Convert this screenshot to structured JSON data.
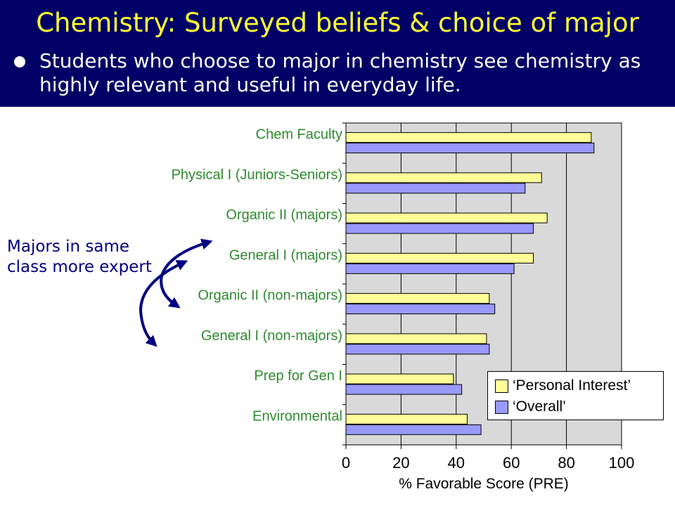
{
  "slide": {
    "title": "Chemistry: Surveyed beliefs & choice of major",
    "bullet": "Students who choose to major in chemistry see chemistry as highly relevant and useful in everyday life.",
    "annotation_line1": "Majors in same",
    "annotation_line2": "class more expert"
  },
  "colors": {
    "header_bg": "#000066",
    "title": "#ffff33",
    "category_label": "#2e8b2e",
    "personal_interest": "#ffff99",
    "overall": "#9999ff",
    "plot_bg": "#d9d9d9",
    "annotation": "#000080"
  },
  "chart_data": {
    "type": "bar",
    "orientation": "horizontal",
    "categories": [
      "Chem Faculty",
      "Physical I (Juniors-Seniors)",
      "Organic II (majors)",
      "General I (majors)",
      "Organic II (non-majors)",
      "General I (non-majors)",
      "Prep for Gen I",
      "Environmental"
    ],
    "series": [
      {
        "name": "‘Personal Interest’",
        "values": [
          89,
          71,
          73,
          68,
          52,
          51,
          39,
          44
        ]
      },
      {
        "name": "‘Overall’",
        "values": [
          90,
          65,
          68,
          61,
          54,
          52,
          42,
          49
        ]
      }
    ],
    "xlabel": "% Favorable Score (PRE)",
    "xlim": [
      0,
      100
    ],
    "xticks": [
      "0",
      "20",
      "40",
      "60",
      "80",
      "100"
    ],
    "grid": true,
    "legend_position": "bottom-right"
  }
}
